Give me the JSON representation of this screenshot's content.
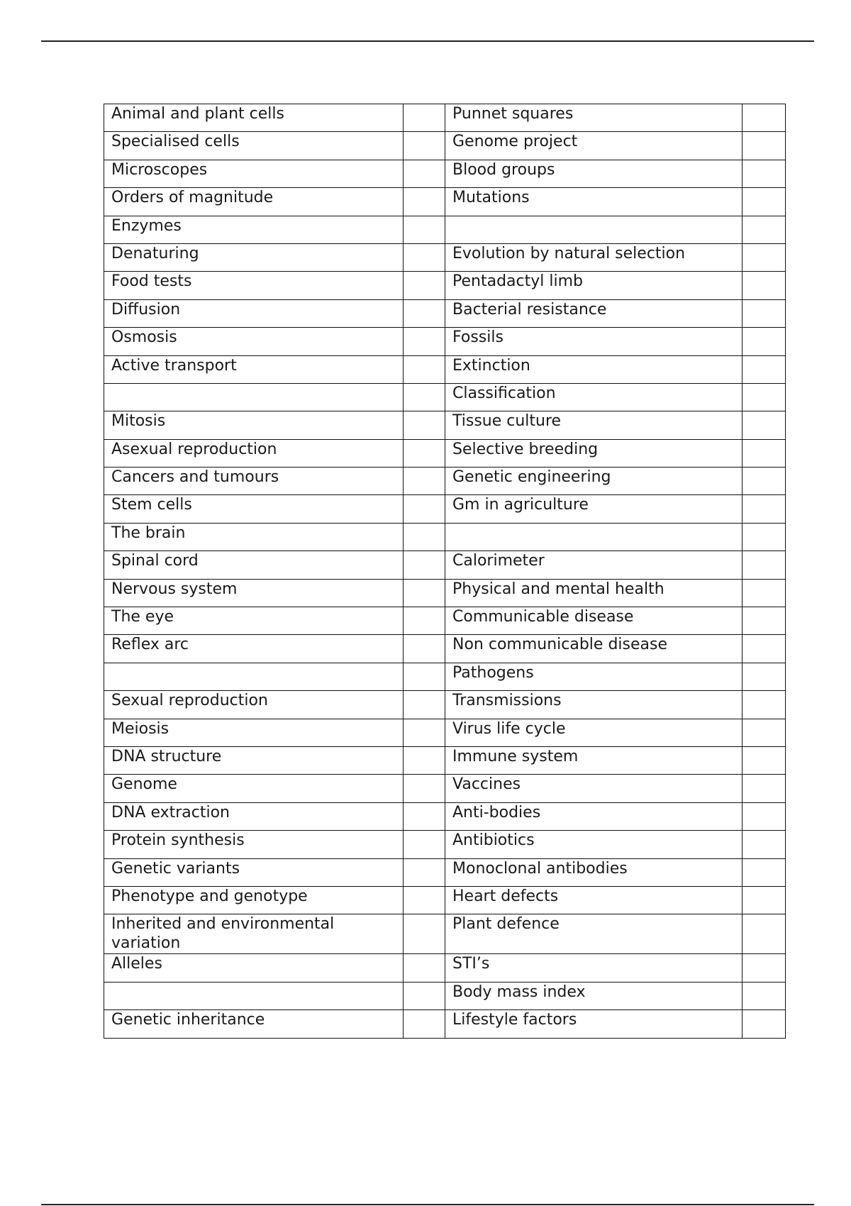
{
  "rows": [
    [
      "Animal and plant cells",
      "Punnet squares"
    ],
    [
      "Specialised cells",
      "Genome project"
    ],
    [
      "Microscopes",
      "Blood groups"
    ],
    [
      "Orders of magnitude",
      "Mutations"
    ],
    [
      "Enzymes",
      ""
    ],
    [
      "Denaturing",
      "Evolution by natural selection"
    ],
    [
      "Food tests",
      "Pentadactyl limb"
    ],
    [
      "Diffusion",
      "Bacterial resistance"
    ],
    [
      "Osmosis",
      "Fossils"
    ],
    [
      "Active transport",
      "Extinction"
    ],
    [
      "",
      "Classification"
    ],
    [
      "Mitosis",
      "Tissue culture"
    ],
    [
      "Asexual reproduction",
      "Selective breeding"
    ],
    [
      "Cancers and tumours",
      "Genetic engineering"
    ],
    [
      "Stem cells",
      "Gm in agriculture"
    ],
    [
      "The brain",
      ""
    ],
    [
      "Spinal cord",
      "Calorimeter"
    ],
    [
      "Nervous system",
      "Physical and mental health"
    ],
    [
      "The eye",
      "Communicable disease"
    ],
    [
      "Reflex arc",
      "Non communicable disease"
    ],
    [
      "",
      "Pathogens"
    ],
    [
      "Sexual reproduction",
      "Transmissions"
    ],
    [
      "Meiosis",
      "Virus life cycle"
    ],
    [
      "DNA structure",
      "Immune system"
    ],
    [
      "Genome",
      "Vaccines"
    ],
    [
      "DNA extraction",
      "Anti-bodies"
    ],
    [
      "Protein synthesis",
      "Antibiotics"
    ],
    [
      "Genetic variants",
      "Monoclonal antibodies"
    ],
    [
      "Phenotype and genotype",
      "Heart defects"
    ],
    [
      "Inherited and environmental variation",
      "Plant defence"
    ],
    [
      "Alleles",
      "STI’s"
    ],
    [
      "",
      "Body mass index"
    ],
    [
      "Genetic inheritance",
      "Lifestyle factors"
    ]
  ]
}
